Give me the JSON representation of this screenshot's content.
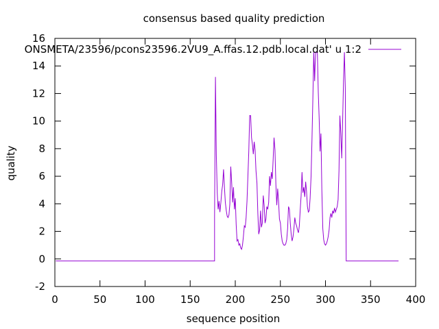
{
  "chart_data": {
    "type": "line",
    "title": "consensus based quality prediction",
    "xlabel": "sequence position",
    "ylabel": "quality",
    "xlim": [
      0,
      400
    ],
    "ylim": [
      -2,
      16
    ],
    "xticks": [
      0,
      50,
      100,
      150,
      200,
      250,
      300,
      350,
      400
    ],
    "yticks": [
      -2,
      0,
      2,
      4,
      6,
      8,
      10,
      12,
      14,
      16
    ],
    "grid": false,
    "legend_position": "top-right",
    "series": [
      {
        "name": "ONSMETA/23596/pcons23596.2VU9_A.ffas.12.pdb.local.dat' u 1:2",
        "color": "#9400d3",
        "points": [
          [
            1,
            -0.15
          ],
          [
            177,
            -0.15
          ],
          [
            177,
            3.0
          ],
          [
            178,
            13.2
          ],
          [
            179,
            7.5
          ],
          [
            180,
            4.8
          ],
          [
            181,
            3.6
          ],
          [
            182,
            4.2
          ],
          [
            183,
            3.4
          ],
          [
            184,
            4.1
          ],
          [
            185,
            4.9
          ],
          [
            186,
            5.4
          ],
          [
            187,
            6.5
          ],
          [
            188,
            5.2
          ],
          [
            189,
            4.1
          ],
          [
            190,
            3.5
          ],
          [
            191,
            3.1
          ],
          [
            192,
            3.0
          ],
          [
            193,
            3.2
          ],
          [
            194,
            4.0
          ],
          [
            195,
            6.7
          ],
          [
            196,
            5.6
          ],
          [
            197,
            4.1
          ],
          [
            198,
            5.2
          ],
          [
            199,
            3.6
          ],
          [
            200,
            4.4
          ],
          [
            201,
            2.5
          ],
          [
            202,
            1.3
          ],
          [
            203,
            1.4
          ],
          [
            204,
            1.0
          ],
          [
            205,
            1.1
          ],
          [
            206,
            0.8
          ],
          [
            207,
            0.7
          ],
          [
            208,
            1.0
          ],
          [
            209,
            1.6
          ],
          [
            210,
            2.4
          ],
          [
            211,
            2.3
          ],
          [
            212,
            3.0
          ],
          [
            213,
            4.2
          ],
          [
            214,
            6.0
          ],
          [
            215,
            7.8
          ],
          [
            216,
            10.4
          ],
          [
            217,
            10.4
          ],
          [
            218,
            8.8
          ],
          [
            219,
            8.3
          ],
          [
            220,
            7.6
          ],
          [
            221,
            8.5
          ],
          [
            222,
            7.9
          ],
          [
            223,
            6.4
          ],
          [
            224,
            5.5
          ],
          [
            225,
            3.3
          ],
          [
            226,
            1.8
          ],
          [
            227,
            2.1
          ],
          [
            228,
            3.5
          ],
          [
            229,
            2.3
          ],
          [
            230,
            2.6
          ],
          [
            231,
            4.6
          ],
          [
            232,
            3.9
          ],
          [
            233,
            2.6
          ],
          [
            234,
            2.9
          ],
          [
            235,
            3.8
          ],
          [
            236,
            3.6
          ],
          [
            237,
            4.1
          ],
          [
            238,
            6.0
          ],
          [
            239,
            5.3
          ],
          [
            240,
            6.3
          ],
          [
            241,
            5.8
          ],
          [
            242,
            7.2
          ],
          [
            243,
            8.8
          ],
          [
            244,
            7.9
          ],
          [
            245,
            5.4
          ],
          [
            246,
            3.9
          ],
          [
            247,
            5.1
          ],
          [
            248,
            4.2
          ],
          [
            249,
            2.9
          ],
          [
            250,
            2.6
          ],
          [
            251,
            1.8
          ],
          [
            252,
            1.3
          ],
          [
            253,
            1.1
          ],
          [
            254,
            1.0
          ],
          [
            255,
            1.0
          ],
          [
            256,
            1.1
          ],
          [
            257,
            1.4
          ],
          [
            258,
            2.2
          ],
          [
            259,
            3.8
          ],
          [
            260,
            3.6
          ],
          [
            261,
            2.6
          ],
          [
            262,
            1.8
          ],
          [
            263,
            1.3
          ],
          [
            264,
            1.6
          ],
          [
            265,
            2.2
          ],
          [
            266,
            3.0
          ],
          [
            267,
            2.6
          ],
          [
            268,
            2.4
          ],
          [
            269,
            2.1
          ],
          [
            270,
            1.9
          ],
          [
            271,
            2.4
          ],
          [
            272,
            3.6
          ],
          [
            273,
            4.6
          ],
          [
            274,
            6.3
          ],
          [
            275,
            4.8
          ],
          [
            276,
            5.2
          ],
          [
            277,
            4.5
          ],
          [
            278,
            5.6
          ],
          [
            279,
            4.9
          ],
          [
            280,
            3.8
          ],
          [
            281,
            3.4
          ],
          [
            282,
            3.5
          ],
          [
            283,
            4.4
          ],
          [
            284,
            6.0
          ],
          [
            285,
            8.6
          ],
          [
            286,
            11.6
          ],
          [
            287,
            15.0
          ],
          [
            288,
            12.9
          ],
          [
            289,
            15.0
          ],
          [
            290,
            15.0
          ],
          [
            291,
            14.9
          ],
          [
            292,
            12.1
          ],
          [
            293,
            10.2
          ],
          [
            294,
            7.8
          ],
          [
            295,
            9.1
          ],
          [
            296,
            5.0
          ],
          [
            297,
            2.2
          ],
          [
            298,
            1.4
          ],
          [
            299,
            1.1
          ],
          [
            300,
            1.0
          ],
          [
            301,
            1.1
          ],
          [
            302,
            1.3
          ],
          [
            303,
            1.6
          ],
          [
            304,
            2.1
          ],
          [
            305,
            3.0
          ],
          [
            306,
            3.3
          ],
          [
            307,
            3.0
          ],
          [
            308,
            3.5
          ],
          [
            309,
            3.3
          ],
          [
            310,
            3.7
          ],
          [
            311,
            3.4
          ],
          [
            312,
            3.6
          ],
          [
            313,
            3.8
          ],
          [
            314,
            4.3
          ],
          [
            315,
            6.4
          ],
          [
            316,
            10.4
          ],
          [
            317,
            9.1
          ],
          [
            318,
            7.3
          ],
          [
            319,
            10.0
          ],
          [
            320,
            12.9
          ],
          [
            321,
            15.0
          ],
          [
            322,
            12.4
          ],
          [
            323,
            -0.15
          ],
          [
            381,
            -0.15
          ]
        ]
      }
    ]
  }
}
